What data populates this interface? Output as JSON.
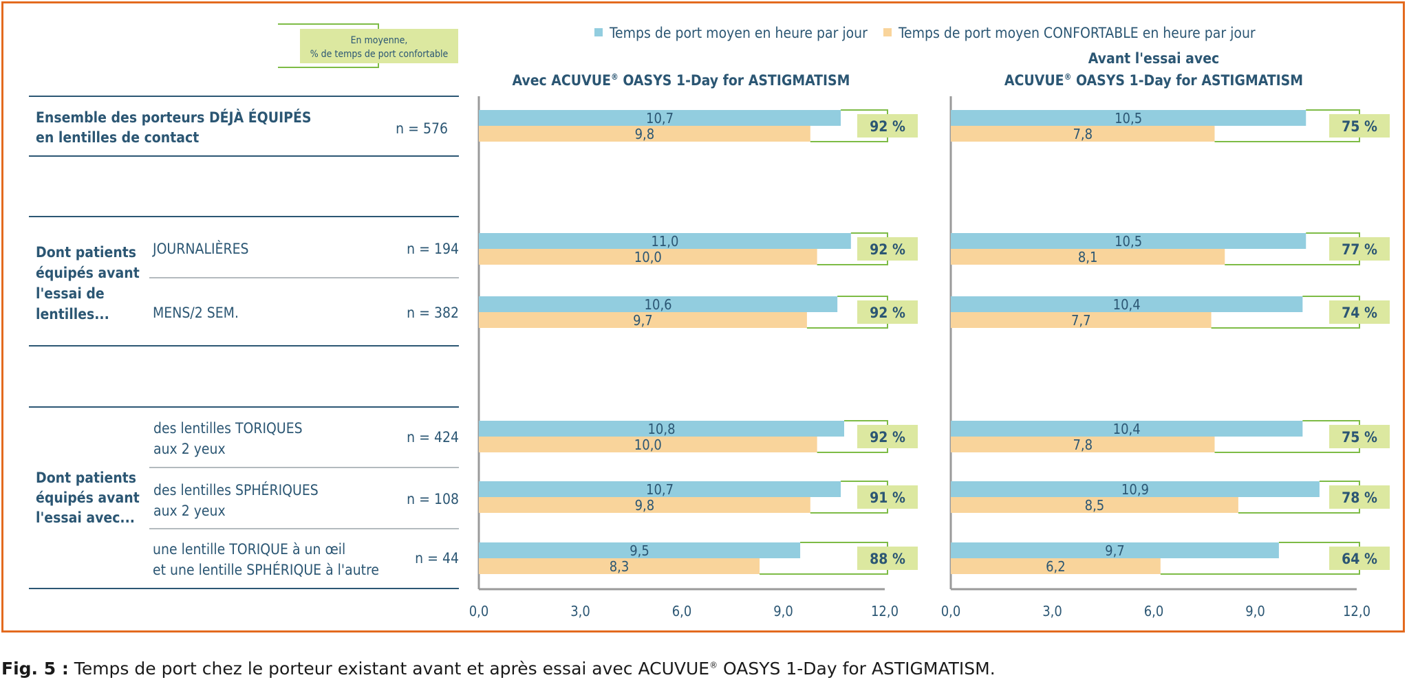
{
  "legend": {
    "average_label_line1": "En moyenne,",
    "average_label_line2": "% de temps de port confortable",
    "series1": "Temps de port moyen en heure par jour",
    "series2": "Temps de port moyen CONFORTABLE en heure par jour"
  },
  "rows": {
    "row0_line1a": "Ensemble des porteurs ",
    "row0_line1b": "DÉJÀ ÉQUIPÉS",
    "row0_line2": "en lentilles de contact",
    "row0_n": "n = 576",
    "group1_line1": "Dont patients",
    "group1_line2": "équipés avant",
    "group1_line3": "l'essai de",
    "group1_line4": "lentilles...",
    "row1_label": "JOURNALIÈRES",
    "row1_n": "n = 194",
    "row2_label": "MENS/2 SEM.",
    "row2_n": "n = 382",
    "group2_line1": "Dont patients",
    "group2_line2": "équipés avant",
    "group2_line3": "l'essai avec...",
    "row3_line1": "des lentilles TORIQUES",
    "row3_line2": "aux 2 yeux",
    "row3_n": "n = 424",
    "row4_line1": "des lentilles SPHÉRIQUES",
    "row4_line2": "aux 2 yeux",
    "row4_n": "n = 108",
    "row5_line1": "une lentille TORIQUE à un œil",
    "row5_line2": "et une lentille SPHÉRIQUE à l'autre",
    "row5_n": "n = 44"
  },
  "caption": {
    "fig": "Fig. 5 :",
    "text_a": " Temps de port chez le porteur existant avant et après essai avec ACUVUE",
    "reg": "®",
    "text_b": " OASYS 1-Day for ASTIGMATISM."
  },
  "colors": {
    "series1": "#92cddf",
    "series2": "#f9d49b",
    "pct_box": "#dce8a0",
    "bracket": "#7dbb45",
    "text": "#2b5673",
    "frame": "#e36a1e"
  },
  "chart_data": [
    {
      "type": "bar",
      "orientation": "horizontal",
      "title_line1": "Avec ACUVUE",
      "title_reg": "®",
      "title_line1b": " OASYS 1-Day for ASTIGMATISM",
      "title_line2": "",
      "xlim": [
        0,
        12
      ],
      "xticks": [
        "0,0",
        "3,0",
        "6,0",
        "9,0",
        "12,0"
      ],
      "series": [
        {
          "name": "Temps de port moyen en heure par jour",
          "values": [
            10.7,
            11.0,
            10.6,
            10.8,
            10.7,
            9.5
          ],
          "labels": [
            "10,7",
            "11,0",
            "10,6",
            "10,8",
            "10,7",
            "9,5"
          ]
        },
        {
          "name": "Temps de port moyen CONFORTABLE en heure par jour",
          "values": [
            9.8,
            10.0,
            9.7,
            10.0,
            9.8,
            8.3
          ],
          "labels": [
            "9,8",
            "10,0",
            "9,7",
            "10,0",
            "9,8",
            "8,3"
          ]
        }
      ],
      "percent_labels": [
        "92 %",
        "92 %",
        "92 %",
        "92 %",
        "91 %",
        "88 %"
      ]
    },
    {
      "type": "bar",
      "orientation": "horizontal",
      "title_line0": "Avant l'essai avec",
      "title_line1": "ACUVUE",
      "title_reg": "®",
      "title_line1b": " OASYS 1-Day for ASTIGMATISM",
      "xlim": [
        0,
        12
      ],
      "xticks": [
        "0,0",
        "3,0",
        "6,0",
        "9,0",
        "12,0"
      ],
      "series": [
        {
          "name": "Temps de port moyen en heure par jour",
          "values": [
            10.5,
            10.5,
            10.4,
            10.4,
            10.9,
            9.7
          ],
          "labels": [
            "10,5",
            "10,5",
            "10,4",
            "10,4",
            "10,9",
            "9,7"
          ]
        },
        {
          "name": "Temps de port moyen CONFORTABLE en heure par jour",
          "values": [
            7.8,
            8.1,
            7.7,
            7.8,
            8.5,
            6.2
          ],
          "labels": [
            "7,8",
            "8,1",
            "7,7",
            "7,8",
            "8,5",
            "6,2"
          ]
        }
      ],
      "percent_labels": [
        "75 %",
        "77 %",
        "74 %",
        "75 %",
        "78 %",
        "64 %"
      ]
    }
  ]
}
